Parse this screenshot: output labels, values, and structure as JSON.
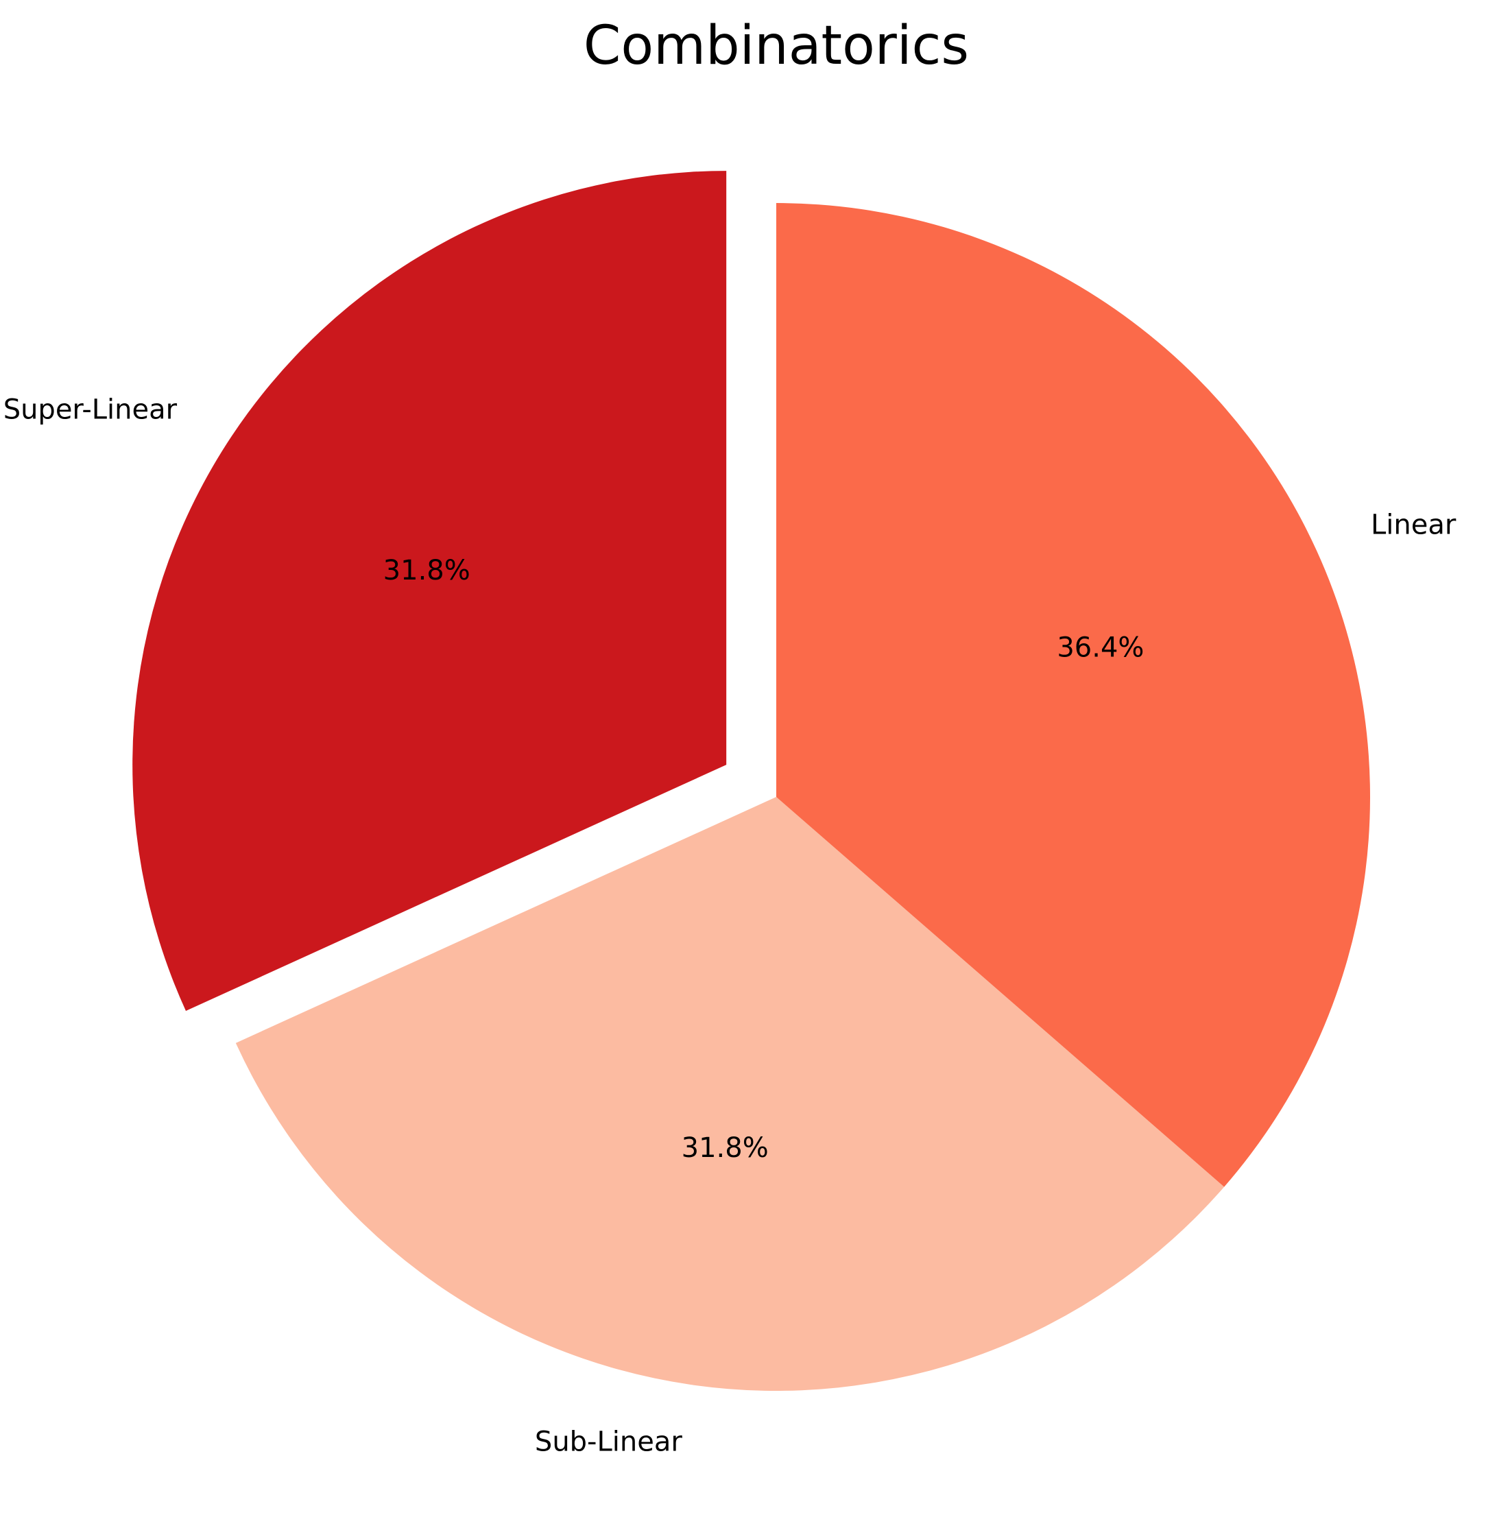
{
  "chart_data": {
    "type": "pie",
    "title": "Combinatorics",
    "categories": [
      "Super-Linear",
      "Sub-Linear",
      "Linear"
    ],
    "values": [
      31.8,
      31.8,
      36.4
    ],
    "percent_labels": [
      "31.8%",
      "31.8%",
      "36.4%"
    ],
    "colors": [
      "#cb181d",
      "#fcbba1",
      "#fb6a4a"
    ],
    "exploded": [
      true,
      false,
      false
    ],
    "start_angle_deg": 90,
    "direction": "counterclockwise",
    "legend": "none"
  }
}
